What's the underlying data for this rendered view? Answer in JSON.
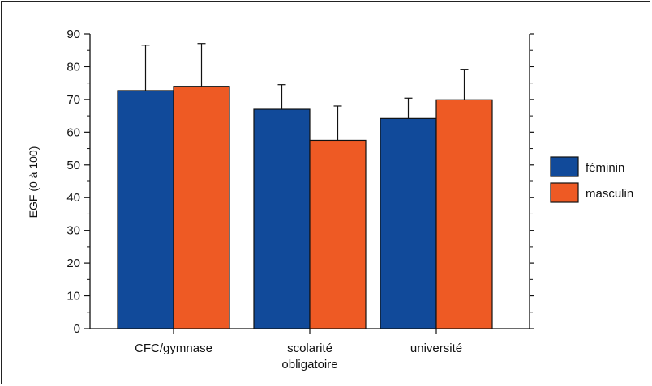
{
  "chart_data": {
    "type": "bar",
    "title": "",
    "xlabel": "",
    "ylabel": "EGF (0 à 100)",
    "ylim": [
      0,
      90
    ],
    "yticks": [
      0,
      10,
      20,
      30,
      40,
      50,
      60,
      70,
      80,
      90
    ],
    "categories": [
      [
        "CFC/gymnase"
      ],
      [
        "scolarité",
        "obligatoire"
      ],
      [
        "université"
      ]
    ],
    "series": [
      {
        "name": "féminin",
        "color": "#114a9a",
        "values": [
          72.7,
          67.0,
          64.2
        ],
        "error_upper": [
          86.6,
          74.5,
          70.4
        ]
      },
      {
        "name": "masculin",
        "color": "#ee5a24",
        "values": [
          74.0,
          57.5,
          69.9
        ],
        "error_upper": [
          87.1,
          68.0,
          79.2
        ]
      }
    ],
    "legend": "right",
    "grid": false
  }
}
